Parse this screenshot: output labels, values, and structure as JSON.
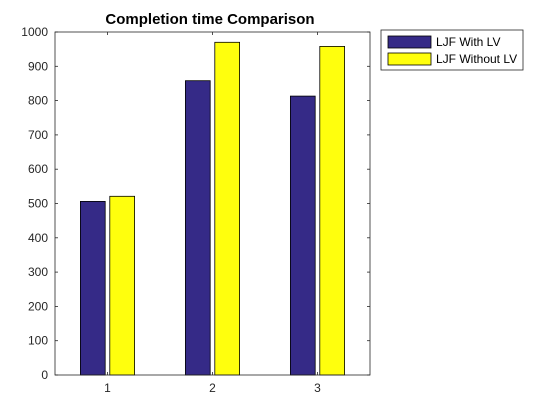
{
  "chart_data": {
    "type": "bar",
    "title": "Completion time Comparison",
    "xlabel": "",
    "ylabel": "",
    "categories": [
      "1",
      "2",
      "3"
    ],
    "ylim": [
      0,
      1000
    ],
    "yticks": [
      "0",
      "100",
      "200",
      "300",
      "400",
      "500",
      "600",
      "700",
      "800",
      "900",
      "1000"
    ],
    "series": [
      {
        "name": "LJF With LV",
        "color": "#352A87",
        "values": [
          506,
          858,
          813
        ]
      },
      {
        "name": "LJF Without LV",
        "color": "#FFFF0D",
        "values": [
          521,
          970,
          958
        ]
      }
    ],
    "legend_position": "outside-top-right",
    "grid": false
  }
}
